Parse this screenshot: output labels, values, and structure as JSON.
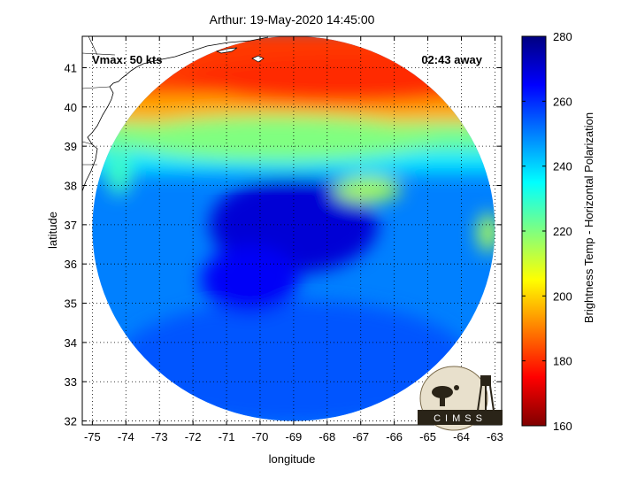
{
  "chart_data": {
    "type": "heatmap",
    "title": "Arthur: 19-May-2020 14:45:00",
    "annotations": {
      "vmax": "Vmax: 50 kts",
      "time_away": "02:43 away"
    },
    "xlabel": "longitude",
    "ylabel": "latitude",
    "xlim": [
      -75.3,
      -62.8
    ],
    "ylim": [
      31.9,
      41.8
    ],
    "xticks": [
      -75,
      -74,
      -73,
      -72,
      -71,
      -70,
      -69,
      -68,
      -67,
      -66,
      -65,
      -64,
      -63
    ],
    "yticks": [
      32,
      33,
      34,
      35,
      36,
      37,
      38,
      39,
      40,
      41
    ],
    "grid": true,
    "colorbar": {
      "label": "Brightness Temp - Horizontal Polarization",
      "range": [
        160,
        280
      ],
      "ticks": [
        160,
        180,
        200,
        220,
        240,
        260,
        280
      ],
      "colormap": "jet"
    },
    "swath": {
      "center_lon": -69.0,
      "center_lat": 36.9,
      "radius_lon": 6.0,
      "radius_lat": 4.9
    },
    "features": [
      {
        "name": "warm-north-band",
        "lon": -67.5,
        "lat": 40.7,
        "value": 180
      },
      {
        "name": "mid-band",
        "lon": -69.5,
        "lat": 39.2,
        "value": 220
      },
      {
        "name": "cyclone-core",
        "lon": -69.0,
        "lat": 37.0,
        "value": 270
      },
      {
        "name": "cloud-patch",
        "lon": -66.8,
        "lat": 37.9,
        "value": 215
      },
      {
        "name": "east-patch",
        "lon": -63.2,
        "lat": 36.8,
        "value": 215
      },
      {
        "name": "south-region",
        "lon": -69.0,
        "lat": 33.5,
        "value": 255
      }
    ]
  },
  "logo": {
    "text": "CIMSS"
  }
}
